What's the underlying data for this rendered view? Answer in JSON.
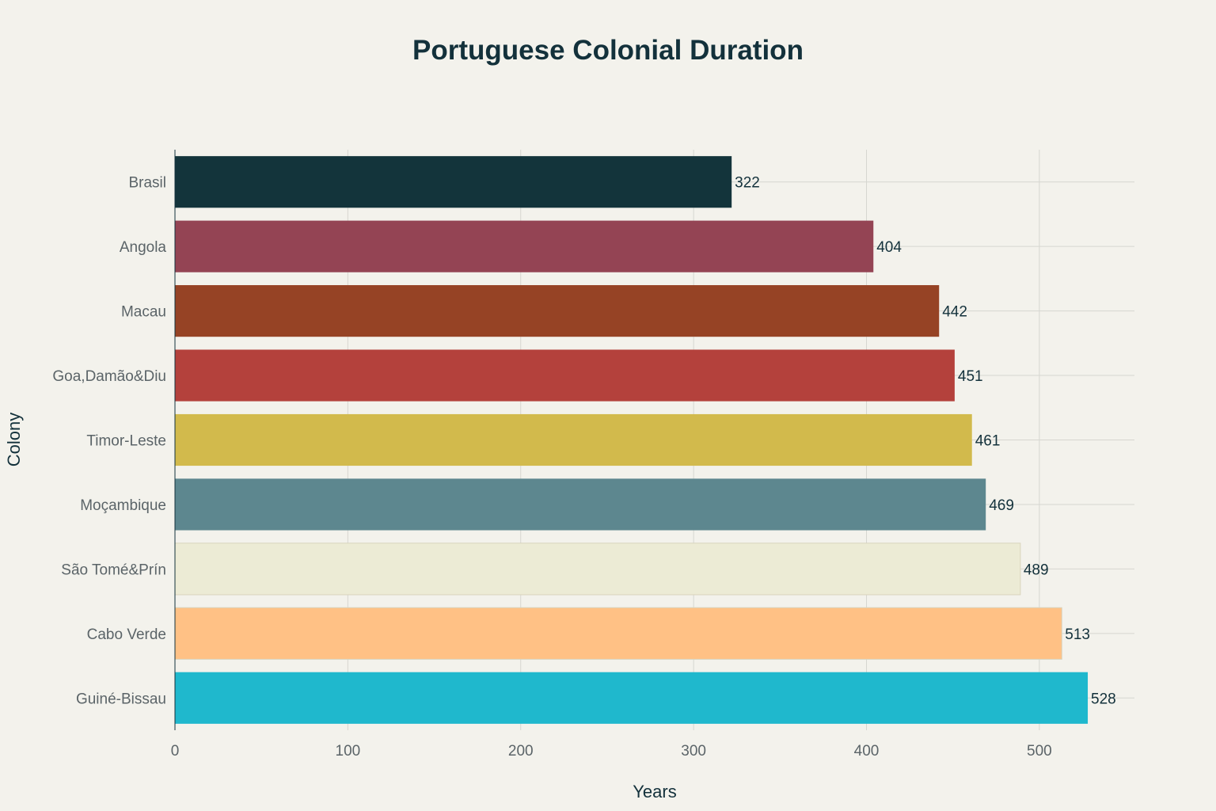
{
  "chart_data": {
    "type": "bar",
    "orientation": "horizontal",
    "title": "Portuguese Colonial Duration",
    "xlabel": "Years",
    "ylabel": "Colony",
    "xlim": [
      0,
      555
    ],
    "x_ticks": [
      0,
      100,
      200,
      300,
      400,
      500
    ],
    "grid": true,
    "categories": [
      "Brasil",
      "Angola",
      "Macau",
      "Goa,Damão&Diu",
      "Timor-Leste",
      "Moçambique",
      "São Tomé&Prín",
      "Cabo Verde",
      "Guiné-Bissau"
    ],
    "values": [
      322,
      404,
      442,
      451,
      461,
      469,
      489,
      513,
      528
    ],
    "colors": [
      "#13343b",
      "#944454",
      "#964325",
      "#b4413c",
      "#d2ba4c",
      "#5d878f",
      "#ecebd5",
      "#ffc185",
      "#1fb8cd"
    ],
    "show_value_labels": true
  },
  "colors": {
    "background": "#f3f2ec",
    "text": "#13313b",
    "tick_text": "#5b6468",
    "grid": "#d6d6d0"
  }
}
